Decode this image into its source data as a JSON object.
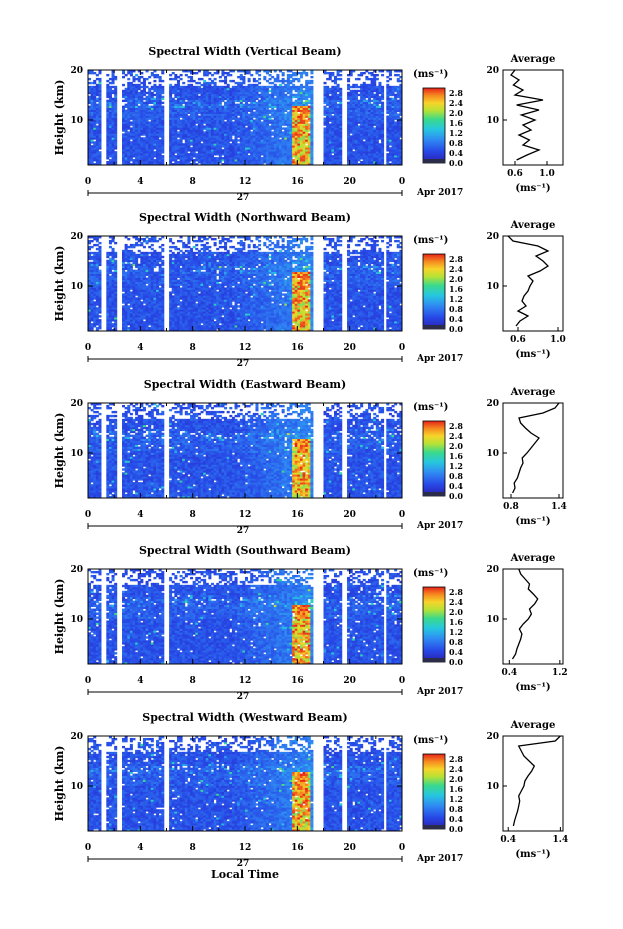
{
  "figure": {
    "x_axis_title": "Local Time",
    "date_label": "Apr 2017",
    "day_label": "27",
    "colorbar_unit": "(ms⁻¹)",
    "profile_unit": "(ms⁻¹)",
    "profile_title": "Average"
  },
  "chart_data": [
    {
      "type": "heatmap",
      "title": "Spectral Width (Vertical Beam)",
      "xlabel": "",
      "ylabel": "Height (km)",
      "x_ticks": [
        "0",
        "4",
        "8",
        "12",
        "16",
        "20",
        "0"
      ],
      "xlim": [
        0,
        24
      ],
      "y_ticks": [
        "10",
        "20"
      ],
      "ylim": [
        1,
        20
      ],
      "colorbar_ticks": [
        "0.0",
        "0.4",
        "0.8",
        "1.2",
        "1.6",
        "2.0",
        "2.4",
        "2.8"
      ],
      "colorbar_range": [
        0,
        3
      ],
      "profile": {
        "type": "line",
        "title": "Average",
        "x_ticks": [
          "0.6",
          "1.0"
        ],
        "xlim": [
          0.45,
          1.2
        ],
        "heights": [
          2,
          3,
          4,
          5,
          6,
          7,
          8,
          9,
          10,
          11,
          12,
          13,
          14,
          15,
          16,
          17,
          18,
          19,
          20
        ],
        "values": [
          0.62,
          0.75,
          0.9,
          0.7,
          0.78,
          0.65,
          0.8,
          0.7,
          0.85,
          0.68,
          0.9,
          0.62,
          0.95,
          0.6,
          0.7,
          0.58,
          0.65,
          0.55,
          0.6
        ]
      }
    },
    {
      "type": "heatmap",
      "title": "Spectral Width (Northward Beam)",
      "xlabel": "",
      "ylabel": "Height (km)",
      "x_ticks": [
        "0",
        "4",
        "8",
        "12",
        "16",
        "20",
        "0"
      ],
      "xlim": [
        0,
        24
      ],
      "y_ticks": [
        "10",
        "20"
      ],
      "ylim": [
        1,
        20
      ],
      "colorbar_ticks": [
        "0.0",
        "0.4",
        "0.8",
        "1.2",
        "1.6",
        "2.0",
        "2.4",
        "2.8"
      ],
      "colorbar_range": [
        0,
        3
      ],
      "profile": {
        "type": "line",
        "title": "Average",
        "x_ticks": [
          "0.6",
          "1.0"
        ],
        "xlim": [
          0.45,
          1.05
        ],
        "heights": [
          2,
          3,
          4,
          5,
          6,
          7,
          8,
          9,
          10,
          11,
          12,
          13,
          14,
          15,
          16,
          17,
          18,
          19,
          20
        ],
        "values": [
          0.58,
          0.62,
          0.7,
          0.6,
          0.68,
          0.64,
          0.66,
          0.7,
          0.72,
          0.75,
          0.7,
          0.82,
          0.9,
          0.85,
          0.78,
          0.9,
          0.8,
          0.55,
          0.5
        ]
      }
    },
    {
      "type": "heatmap",
      "title": "Spectral Width (Eastward Beam)",
      "xlabel": "",
      "ylabel": "Height (km)",
      "x_ticks": [
        "0",
        "4",
        "8",
        "12",
        "16",
        "20",
        "0"
      ],
      "xlim": [
        0,
        24
      ],
      "y_ticks": [
        "10",
        "20"
      ],
      "ylim": [
        1,
        20
      ],
      "colorbar_ticks": [
        "0.0",
        "0.4",
        "0.8",
        "1.2",
        "1.6",
        "2.0",
        "2.4",
        "2.8"
      ],
      "colorbar_range": [
        0,
        3
      ],
      "profile": {
        "type": "line",
        "title": "Average",
        "x_ticks": [
          "0.8",
          "1.4"
        ],
        "xlim": [
          0.7,
          1.45
        ],
        "heights": [
          2,
          3,
          4,
          5,
          6,
          7,
          8,
          9,
          10,
          11,
          12,
          13,
          14,
          15,
          16,
          17,
          18,
          19,
          20
        ],
        "values": [
          0.82,
          0.85,
          0.84,
          0.88,
          0.9,
          0.92,
          0.95,
          0.94,
          1.0,
          1.05,
          1.1,
          1.15,
          1.05,
          0.98,
          0.92,
          0.9,
          1.2,
          1.35,
          1.4
        ]
      }
    },
    {
      "type": "heatmap",
      "title": "Spectral Width (Southward Beam)",
      "xlabel": "",
      "ylabel": "Height (km)",
      "x_ticks": [
        "0",
        "4",
        "8",
        "12",
        "16",
        "20",
        "0"
      ],
      "xlim": [
        0,
        24
      ],
      "y_ticks": [
        "10",
        "20"
      ],
      "ylim": [
        1,
        20
      ],
      "colorbar_ticks": [
        "0.0",
        "0.4",
        "0.8",
        "1.2",
        "1.6",
        "2.0",
        "2.4",
        "2.8"
      ],
      "colorbar_range": [
        0,
        3
      ],
      "profile": {
        "type": "line",
        "title": "Average",
        "x_ticks": [
          "0.4",
          "1.2"
        ],
        "xlim": [
          0.3,
          1.25
        ],
        "heights": [
          2,
          3,
          4,
          5,
          6,
          7,
          8,
          9,
          10,
          11,
          12,
          13,
          14,
          15,
          16,
          17,
          18,
          19,
          20
        ],
        "values": [
          0.45,
          0.5,
          0.52,
          0.55,
          0.58,
          0.6,
          0.56,
          0.62,
          0.7,
          0.75,
          0.72,
          0.8,
          0.85,
          0.78,
          0.7,
          0.72,
          0.65,
          0.58,
          0.55
        ]
      }
    },
    {
      "type": "heatmap",
      "title": "Spectral Width (Westward Beam)",
      "xlabel": "Local Time",
      "ylabel": "Height (km)",
      "x_ticks": [
        "0",
        "4",
        "8",
        "12",
        "16",
        "20",
        "0"
      ],
      "xlim": [
        0,
        24
      ],
      "y_ticks": [
        "10",
        "20"
      ],
      "ylim": [
        1,
        20
      ],
      "colorbar_ticks": [
        "0.0",
        "0.4",
        "0.8",
        "1.2",
        "1.6",
        "2.0",
        "2.4",
        "2.8"
      ],
      "colorbar_range": [
        0,
        3
      ],
      "profile": {
        "type": "line",
        "title": "Average",
        "x_ticks": [
          "0.4",
          "1.4"
        ],
        "xlim": [
          0.3,
          1.45
        ],
        "heights": [
          2,
          3,
          4,
          5,
          6,
          7,
          8,
          9,
          10,
          11,
          12,
          13,
          14,
          15,
          16,
          17,
          18,
          19,
          20
        ],
        "values": [
          0.5,
          0.52,
          0.55,
          0.58,
          0.6,
          0.62,
          0.6,
          0.65,
          0.7,
          0.72,
          0.78,
          0.85,
          0.9,
          0.8,
          0.7,
          0.65,
          0.6,
          1.3,
          1.4
        ]
      }
    }
  ]
}
